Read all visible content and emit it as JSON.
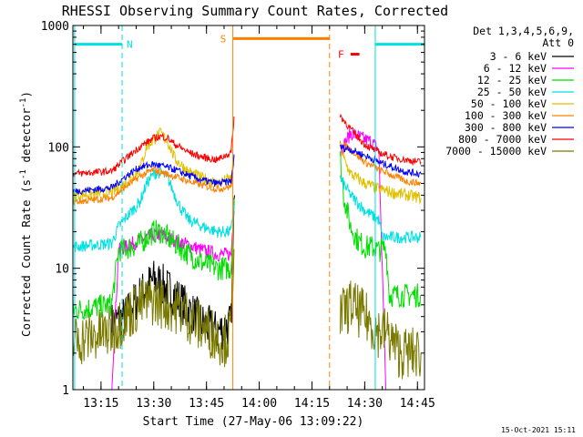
{
  "chart_data": {
    "type": "line",
    "title": "RHESSI Observing Summary Count Rates, Corrected",
    "xlabel": "Start Time (27-May-06 13:09:22)",
    "ylabel_main": "Corrected Count Rate (s",
    "ylabel_sup1": "-1",
    "ylabel_mid": " detector",
    "ylabel_sup2": "-1",
    "ylabel_end": ")",
    "footer_date": "15-Oct-2021 15:11",
    "y_scale": "log",
    "ylim": [
      1,
      1000
    ],
    "xlim_minutes": [
      7,
      87
    ],
    "x_ticks": [
      {
        "t": 15,
        "label": "13:15"
      },
      {
        "t": 30,
        "label": "13:30"
      },
      {
        "t": 45,
        "label": "13:45"
      },
      {
        "t": 60,
        "label": "14:00"
      },
      {
        "t": 75,
        "label": "14:15"
      },
      {
        "t": 90,
        "label": "14:30"
      },
      {
        "t": 105,
        "label": "14:45"
      }
    ],
    "y_ticks": [
      {
        "v": 1,
        "label": "1"
      },
      {
        "v": 10,
        "label": "10"
      },
      {
        "v": 100,
        "label": "100"
      },
      {
        "v": 1000,
        "label": "1000"
      }
    ],
    "legend": {
      "position": "top-right",
      "header1": "Det 1,3,4,5,6,9,",
      "header2": "Att 0"
    },
    "flags": [
      {
        "label": "N",
        "color": "#00e0e0",
        "segments": [
          [
            7.5,
            21
          ],
          [
            93,
            107
          ]
        ],
        "level": 700
      },
      {
        "label": "S",
        "color": "#ff8000",
        "segments": [
          [
            52.5,
            80
          ]
        ],
        "level": 780
      },
      {
        "label": "F",
        "color": "#ff0000",
        "segments": [
          [
            86,
            88.5
          ]
        ],
        "level": 580
      }
    ],
    "vlines": [
      {
        "t": 7.5,
        "color": "#00e0e0",
        "dash": false
      },
      {
        "t": 21,
        "color": "#00e0e0",
        "dash": true
      },
      {
        "t": 52.5,
        "color": "#ff8000",
        "dash": false
      },
      {
        "t": 80,
        "color": "#ff8000",
        "dash": true
      },
      {
        "t": 93,
        "color": "#00e0e0",
        "dash": false
      },
      {
        "t": 107,
        "color": "#00e0e0",
        "dash": true
      }
    ],
    "series": [
      {
        "name": "3 - 6 keV",
        "color": "#000000",
        "noise": 0.18,
        "x": [
          18,
          22,
          24,
          28,
          30,
          32,
          36,
          40,
          44,
          48,
          52,
          53
        ],
        "y": [
          3.5,
          4,
          5,
          7,
          8,
          7.5,
          6,
          4.5,
          3.5,
          3,
          3.5,
          40
        ]
      },
      {
        "name": "6 - 12 keV",
        "color": "#ff00ff",
        "noise": 0.06,
        "x": [
          18,
          20,
          22,
          26,
          30,
          32,
          36,
          40,
          44,
          48,
          52,
          53,
          83,
          86,
          90,
          92,
          94,
          96
        ],
        "y": [
          1,
          14,
          15,
          17,
          19,
          19,
          17,
          15.5,
          14,
          13,
          13,
          40,
          90,
          130,
          115,
          110,
          95,
          1
        ]
      },
      {
        "name": "12 - 25 keV",
        "color": "#00dd00",
        "noise": 0.1,
        "x": [
          7,
          18,
          20,
          22,
          26,
          30,
          32,
          36,
          40,
          44,
          48,
          52,
          53,
          83,
          84,
          86,
          88,
          90,
          92,
          94,
          96,
          97,
          100,
          104,
          106
        ],
        "y": [
          4.5,
          5,
          14,
          14.5,
          16,
          20,
          20,
          16,
          13,
          11,
          10,
          10,
          50,
          80,
          40,
          22,
          17,
          15,
          15,
          14,
          15,
          6,
          6,
          6,
          6
        ]
      },
      {
        "name": "25 - 50 keV",
        "color": "#00e0e0",
        "noise": 0.05,
        "x": [
          7,
          18,
          20,
          22,
          26,
          28,
          30,
          32,
          34,
          36,
          38,
          40,
          44,
          48,
          52,
          53,
          83,
          86,
          90,
          94,
          95,
          98,
          102,
          106
        ],
        "y": [
          15,
          16,
          22,
          26,
          35,
          50,
          60,
          62,
          55,
          40,
          30,
          25,
          22,
          20,
          20,
          40,
          55,
          40,
          30,
          25,
          18,
          18,
          18,
          18
        ]
      },
      {
        "name": "50 - 100 keV",
        "color": "#e0c000",
        "noise": 0.05,
        "x": [
          7,
          18,
          22,
          26,
          28,
          30,
          32,
          34,
          36,
          40,
          44,
          48,
          52,
          53,
          83,
          84,
          86,
          90,
          94,
          98,
          102,
          106
        ],
        "y": [
          40,
          42,
          50,
          65,
          100,
          115,
          130,
          110,
          80,
          62,
          55,
          50,
          55,
          80,
          100,
          80,
          60,
          50,
          45,
          42,
          40,
          38
        ]
      },
      {
        "name": "100 - 300 keV",
        "color": "#ff8000",
        "noise": 0.03,
        "x": [
          7,
          18,
          22,
          26,
          30,
          32,
          36,
          40,
          44,
          48,
          52,
          53,
          83,
          86,
          90,
          94,
          98,
          102,
          106
        ],
        "y": [
          35,
          38,
          47,
          57,
          65,
          62,
          57,
          52,
          48,
          45,
          47,
          90,
          110,
          95,
          75,
          65,
          58,
          52,
          50
        ]
      },
      {
        "name": "300 - 800 keV",
        "color": "#0000ff",
        "noise": 0.03,
        "x": [
          7,
          18,
          22,
          26,
          30,
          32,
          36,
          40,
          44,
          48,
          52,
          53,
          83,
          86,
          90,
          94,
          98,
          102,
          106
        ],
        "y": [
          43,
          46,
          57,
          68,
          72,
          70,
          65,
          58,
          53,
          50,
          52,
          90,
          100,
          95,
          85,
          75,
          68,
          62,
          60
        ]
      },
      {
        "name": "800 - 7000 keV",
        "color": "#ff0000",
        "noise": 0.03,
        "x": [
          7,
          18,
          22,
          26,
          30,
          32,
          34,
          36,
          40,
          44,
          48,
          52,
          53,
          83,
          86,
          90,
          94,
          98,
          102,
          106
        ],
        "y": [
          60,
          63,
          80,
          100,
          118,
          122,
          118,
          105,
          90,
          82,
          78,
          90,
          200,
          180,
          140,
          105,
          90,
          82,
          78,
          75
        ]
      },
      {
        "name": "7000 - 15000 keV",
        "color": "#7a7a00",
        "noise": 0.22,
        "x": [
          7,
          18,
          22,
          26,
          30,
          34,
          38,
          42,
          46,
          50,
          52,
          53,
          83,
          86,
          90,
          94,
          96,
          100,
          104,
          106
        ],
        "y": [
          2.5,
          3,
          4,
          5,
          5.5,
          5,
          4.5,
          3.5,
          3,
          2.5,
          3,
          30,
          4,
          5,
          4,
          3,
          3,
          2,
          2,
          2
        ]
      }
    ]
  }
}
